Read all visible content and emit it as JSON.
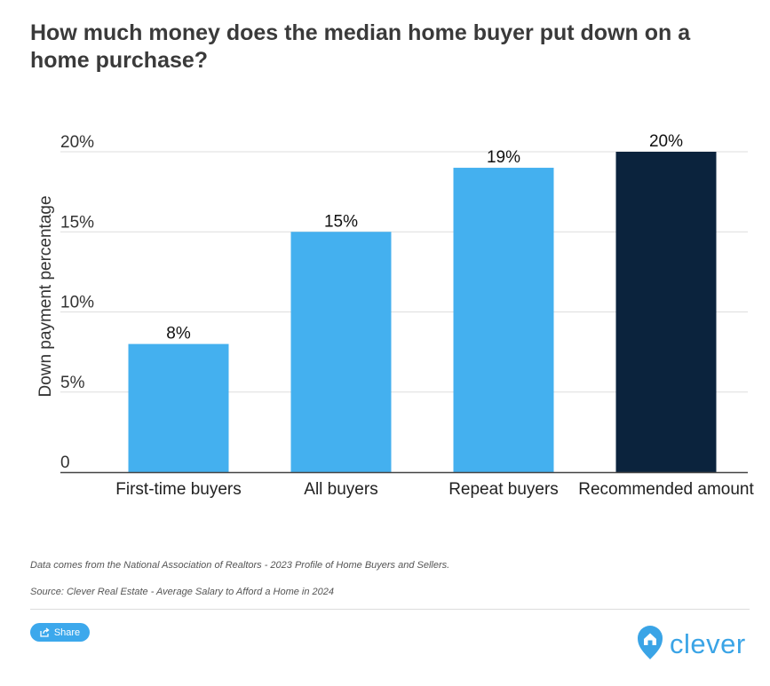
{
  "title": "How much money does the median home buyer put down on a home purchase?",
  "chart_data": {
    "type": "bar",
    "categories": [
      "First-time buyers",
      "All buyers",
      "Repeat buyers",
      "Recommended amount"
    ],
    "values": [
      8,
      15,
      19,
      20
    ],
    "data_labels": [
      "8%",
      "15%",
      "19%",
      "20%"
    ],
    "ylabel": "Down payment percentage",
    "xlabel": "",
    "ylim": [
      0,
      20
    ],
    "yticks": [
      0,
      5,
      10,
      15,
      20
    ],
    "ytick_labels": [
      "0",
      "5%",
      "10%",
      "15%",
      "20%"
    ],
    "grid": true,
    "bar_colors": [
      "#44b0ef",
      "#44b0ef",
      "#44b0ef",
      "#0b233d"
    ]
  },
  "footer": {
    "note": "Data comes from the National Association of Realtors - 2023 Profile of Home Buyers and Sellers.",
    "source": "Source: Clever Real Estate - Average Salary to Afford a Home in 2024",
    "share_label": "Share",
    "logo_text": "clever"
  },
  "colors": {
    "accent": "#3ca8ec",
    "dark_bar": "#0b233d",
    "light_bar": "#44b0ef"
  },
  "icons": {
    "share": "share-icon",
    "logo": "clever-house-pin-icon"
  }
}
